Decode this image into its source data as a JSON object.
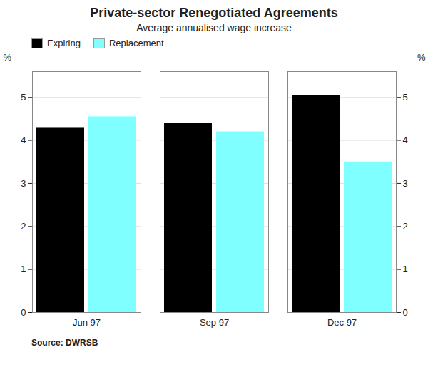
{
  "chart_data": {
    "type": "bar",
    "title": "Private-sector Renegotiated Agreements",
    "subtitle": "Average annualised wage increase",
    "categories": [
      "Jun 97",
      "Sep 97",
      "Dec 97"
    ],
    "series": [
      {
        "name": "Expiring",
        "color": "#000000",
        "values": [
          4.3,
          4.4,
          5.05
        ]
      },
      {
        "name": "Replacement",
        "color": "#7fffff",
        "values": [
          4.55,
          4.2,
          3.5
        ]
      }
    ],
    "ylim": [
      0,
      5.6
    ],
    "yticks": [
      0,
      1,
      2,
      3,
      4,
      5
    ],
    "ylabel": "%",
    "y2lim": [
      0,
      5.6
    ],
    "y2ticks": [
      0,
      1,
      2,
      3,
      4,
      5
    ],
    "y2label": "%",
    "grid": true,
    "legend": "upper left",
    "source": "Source: DWRSB"
  }
}
